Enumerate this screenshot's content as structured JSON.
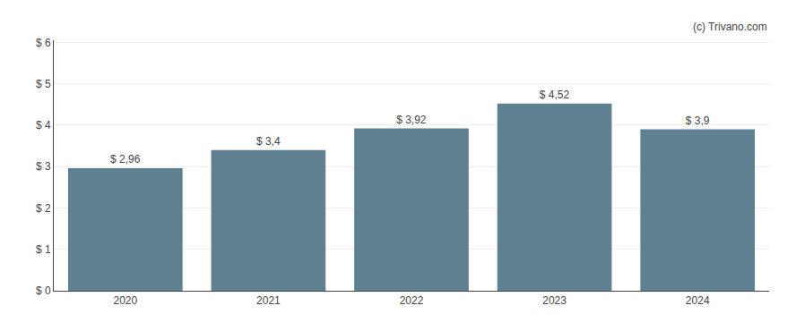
{
  "chart_data": {
    "type": "bar",
    "categories": [
      "2020",
      "2021",
      "2022",
      "2023",
      "2024"
    ],
    "values": [
      2.96,
      3.4,
      3.92,
      4.52,
      3.9
    ],
    "value_labels": [
      "$ 2,96",
      "$ 3,4",
      "$ 3,92",
      "$ 4,52",
      "$ 3,9"
    ],
    "data_labels": true,
    "color": "#5f8090",
    "ylim": [
      0,
      6.05
    ],
    "yticks": [
      {
        "value": 0,
        "label": "$ 0"
      },
      {
        "value": 1,
        "label": "$ 1"
      },
      {
        "value": 2,
        "label": "$ 2"
      },
      {
        "value": 3,
        "label": "$ 3"
      },
      {
        "value": 4,
        "label": "$ 4"
      },
      {
        "value": 5,
        "label": "$ 5"
      },
      {
        "value": 6,
        "label": "$ 6"
      }
    ],
    "grid": true,
    "annotations": [
      "(c) Trivano.com"
    ]
  }
}
